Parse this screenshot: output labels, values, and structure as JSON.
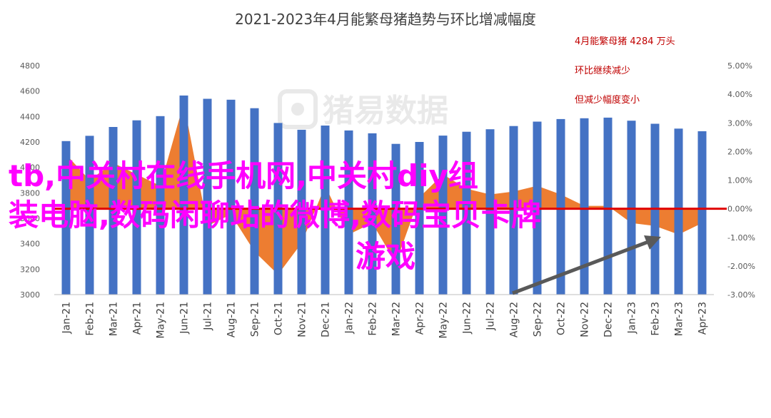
{
  "chart_data": {
    "type": "bar",
    "title": "2021-2023年4月能繁母猪趋势与环比增减幅度",
    "categories": [
      "Jan-21",
      "Feb-21",
      "Mar-21",
      "Apr-21",
      "May-21",
      "Jun-21",
      "Jul-21",
      "Aug-21",
      "Sep-21",
      "Oct-21",
      "Nov-21",
      "Dec-21",
      "Jan-22",
      "Feb-22",
      "Mar-22",
      "Apr-22",
      "May-22",
      "Jun-22",
      "Jul-22",
      "Aug-22",
      "Sep-22",
      "Oct-22",
      "Nov-22",
      "Dec-22",
      "Jan-23",
      "Feb-23",
      "Mar-23",
      "Apr-23"
    ],
    "series": [
      {
        "type": "bar",
        "axis": "left",
        "values": [
          4207,
          4248,
          4318,
          4370,
          4403,
          4565,
          4539,
          4532,
          4465,
          4349,
          4296,
          4329,
          4290,
          4268,
          4185,
          4200,
          4250,
          4280,
          4300,
          4325,
          4360,
          4380,
          4386,
          4391,
          4367,
          4343,
          4305,
          4284
        ]
      },
      {
        "type": "area",
        "axis": "right",
        "values": [
          1.9,
          1.0,
          1.6,
          1.2,
          0.8,
          3.7,
          -0.6,
          -0.2,
          -1.5,
          -2.3,
          -1.2,
          0.8,
          -0.9,
          -0.5,
          -1.9,
          0.4,
          1.2,
          0.7,
          0.5,
          0.6,
          0.8,
          0.5,
          0.1,
          0.1,
          -0.5,
          -0.6,
          -0.9,
          -0.5
        ]
      }
    ],
    "y_left": {
      "min": 3000,
      "max": 4800,
      "step": 200
    },
    "y_right": {
      "min": -3.0,
      "max": 5.0,
      "step": 1.0
    },
    "y_left_ticks": [
      "3000",
      "3200",
      "3400",
      "3600",
      "3800",
      "4000",
      "4200",
      "4400",
      "4600",
      "4800"
    ],
    "y_right_ticks": [
      "-3.00%",
      "-2.00%",
      "-1.00%",
      "0.00%",
      "1.00%",
      "2.00%",
      "3.00%",
      "4.00%",
      "5.00%"
    ],
    "zero_line_color": "#e00000",
    "colors": {
      "bar": "#4472c4",
      "area": "#ed7d31",
      "arrow": "#595959",
      "annotation": "#c00000"
    },
    "annotations": [
      "4月能繁母猪 4284 万头",
      "环比继续减少",
      "但减少幅度变小"
    ],
    "grid": false,
    "legend": "none"
  },
  "watermark": "猪易数据",
  "overlay": {
    "line1": "tb,中关村在线手机网,中关村diy组",
    "line2": "装电脑,数码闲聊站的微博,数码宝贝卡牌",
    "line3": "游戏"
  }
}
